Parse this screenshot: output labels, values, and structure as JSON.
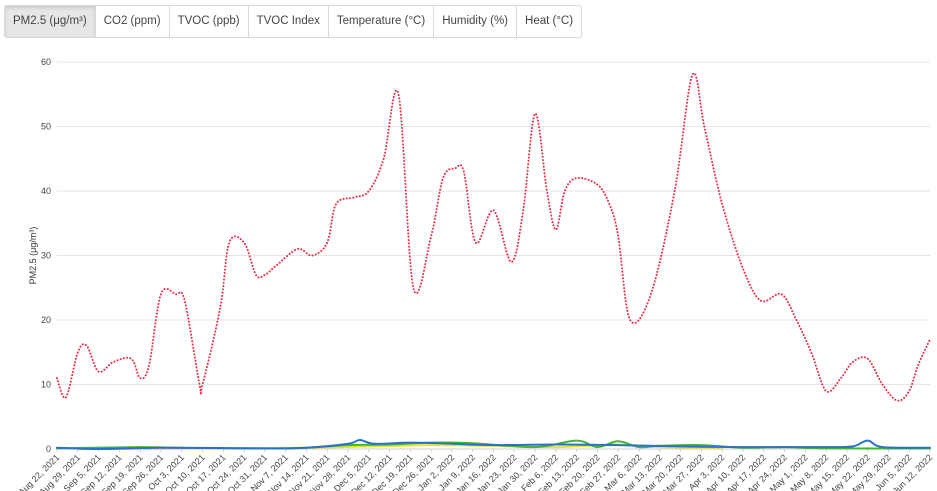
{
  "tabs": [
    {
      "label": "PM2.5 (μg/m³)",
      "active": true
    },
    {
      "label": "CO2 (ppm)",
      "active": false
    },
    {
      "label": "TVOC (ppb)",
      "active": false
    },
    {
      "label": "TVOC Index",
      "active": false
    },
    {
      "label": "Temperature (°C)",
      "active": false
    },
    {
      "label": "Humidity (%)",
      "active": false
    },
    {
      "label": "Heat (°C)",
      "active": false
    }
  ],
  "chart_data": {
    "type": "line",
    "ylabel": "PM2.5 (μg/m³)",
    "ylim": [
      0,
      60
    ],
    "yticks": [
      0,
      10,
      20,
      30,
      40,
      50,
      60
    ],
    "grid": true,
    "x_ticks": [
      "Aug 22, 2021",
      "Aug 29, 2021",
      "Sep 5, 2021",
      "Sep 12, 2021",
      "Sep 19, 2021",
      "Sep 26, 2021",
      "Oct 3, 2021",
      "Oct 10, 2021",
      "Oct 17, 2021",
      "Oct 24, 2021",
      "Oct 31, 2021",
      "Nov 7, 2021",
      "Nov 14, 2021",
      "Nov 21, 2021",
      "Nov 28, 2021",
      "Dec 5, 2021",
      "Dec 12, 2021",
      "Dec 19, 2021",
      "Dec 26, 2021",
      "Jan 2, 2022",
      "Jan 9, 2022",
      "Jan 16, 2022",
      "Jan 23, 2022",
      "Jan 30, 2022",
      "Feb 6, 2022",
      "Feb 13, 2022",
      "Feb 20, 2022",
      "Feb 27, 2022",
      "Mar 6, 2022",
      "Mar 13, 2022",
      "Mar 20, 2022",
      "Mar 27, 2022",
      "Apr 3, 2022",
      "Apr 10, 2022",
      "Apr 17, 2022",
      "Apr 24, 2022",
      "May 1, 2022",
      "May 8, 2022",
      "May 15, 2022",
      "May 22, 2022",
      "May 29, 2022",
      "Jun 5, 2022",
      "Jun 12, 2022"
    ],
    "series": [
      {
        "color": "#e8334f",
        "dotted": true,
        "x": [
          "Aug 22, 2021",
          "Aug 25, 2021",
          "Aug 29, 2021",
          "Sep 1, 2021",
          "Sep 5, 2021",
          "Sep 10, 2021",
          "Sep 16, 2021",
          "Sep 19, 2021",
          "Sep 22, 2021",
          "Sep 26, 2021",
          "Oct 1, 2021",
          "Oct 4, 2021",
          "Oct 9, 2021",
          "Oct 10, 2021",
          "Oct 16, 2021",
          "Oct 19, 2021",
          "Oct 24, 2021",
          "Oct 28, 2021",
          "Oct 31, 2021",
          "Nov 4, 2021",
          "Nov 11, 2021",
          "Nov 16, 2021",
          "Nov 21, 2021",
          "Nov 24, 2021",
          "Nov 30, 2021",
          "Dec 5, 2021",
          "Dec 10, 2021",
          "Dec 15, 2021",
          "Dec 20, 2021",
          "Dec 26, 2021",
          "Dec 30, 2021",
          "Jan 3, 2022",
          "Jan 6, 2022",
          "Jan 10, 2022",
          "Jan 16, 2022",
          "Jan 22, 2022",
          "Jan 26, 2022",
          "Jan 30, 2022",
          "Feb 3, 2022",
          "Feb 6, 2022",
          "Feb 9, 2022",
          "Feb 13, 2022",
          "Feb 20, 2022",
          "Feb 24, 2022",
          "Feb 27, 2022",
          "Mar 3, 2022",
          "Mar 10, 2022",
          "Mar 18, 2022",
          "Mar 24, 2022",
          "Mar 28, 2022",
          "Apr 3, 2022",
          "Apr 10, 2022",
          "Apr 16, 2022",
          "Apr 23, 2022",
          "Apr 28, 2022",
          "May 3, 2022",
          "May 8, 2022",
          "May 13, 2022",
          "May 17, 2022",
          "May 22, 2022",
          "May 27, 2022",
          "Jun 1, 2022",
          "Jun 5, 2022",
          "Jun 8, 2022",
          "Jun 12, 2022"
        ],
        "y": [
          11,
          8,
          15,
          16,
          12,
          13.5,
          14,
          11,
          13,
          24,
          24,
          23,
          10,
          10,
          22,
          32,
          32,
          27,
          27,
          28.5,
          31,
          30,
          32,
          38,
          39,
          40,
          45,
          55,
          25,
          33,
          42,
          43.5,
          43,
          32,
          37,
          29,
          37,
          52,
          40,
          34,
          40,
          42,
          41,
          38,
          33,
          20,
          24,
          40,
          58,
          50,
          38,
          28,
          23,
          24,
          20,
          15,
          9,
          11,
          13.5,
          14,
          10,
          7.5,
          9,
          13,
          17
        ]
      },
      {
        "color": "#2a72c8",
        "dotted": false,
        "x": [
          "Aug 22, 2021",
          "Sep 5, 2021",
          "Sep 26, 2021",
          "Oct 31, 2021",
          "Nov 14, 2021",
          "Nov 28, 2021",
          "Dec 2, 2021",
          "Dec 7, 2021",
          "Dec 19, 2021",
          "Jan 2, 2022",
          "Jan 16, 2022",
          "Feb 6, 2022",
          "Feb 27, 2022",
          "Mar 20, 2022",
          "Apr 10, 2022",
          "May 8, 2022",
          "May 17, 2022",
          "May 22, 2022",
          "May 27, 2022",
          "Jun 12, 2022"
        ],
        "y": [
          0.2,
          0,
          0.2,
          0.1,
          0.2,
          0.8,
          1.4,
          0.8,
          1.0,
          0.8,
          0.6,
          0.7,
          0.6,
          0.4,
          0.3,
          0.3,
          0.4,
          1.3,
          0.3,
          0.2
        ]
      },
      {
        "color": "#3fb637",
        "dotted": false,
        "x": [
          "Aug 22, 2021",
          "Sep 19, 2021",
          "Oct 3, 2021",
          "Nov 7, 2021",
          "Nov 28, 2021",
          "Dec 12, 2021",
          "Dec 26, 2021",
          "Jan 9, 2022",
          "Jan 30, 2022",
          "Feb 13, 2022",
          "Feb 20, 2022",
          "Feb 27, 2022",
          "Mar 6, 2022",
          "Mar 13, 2022",
          "Mar 27, 2022",
          "Apr 10, 2022",
          "Apr 24, 2022",
          "May 8, 2022",
          "Jun 12, 2022"
        ],
        "y": [
          0.1,
          0.3,
          0.2,
          0.1,
          0.6,
          0.7,
          1.0,
          0.9,
          0.3,
          1.3,
          0.3,
          1.2,
          0.3,
          0.5,
          0.6,
          0.2,
          0.3,
          0.1,
          0.1
        ]
      },
      {
        "color": "#f0e12a",
        "dotted": false,
        "x": [
          "Aug 29, 2021",
          "Sep 19, 2021",
          "Oct 10, 2021",
          "Nov 14, 2021",
          "Dec 5, 2021",
          "Dec 26, 2021",
          "Jan 16, 2022",
          "Feb 6, 2022",
          "Feb 27, 2022",
          "Mar 13, 2022",
          "Apr 3, 2022"
        ],
        "y": [
          0,
          0,
          0.1,
          0.2,
          0.4,
          0.6,
          0.5,
          0.3,
          0.7,
          0.3,
          0.2
        ]
      }
    ]
  }
}
